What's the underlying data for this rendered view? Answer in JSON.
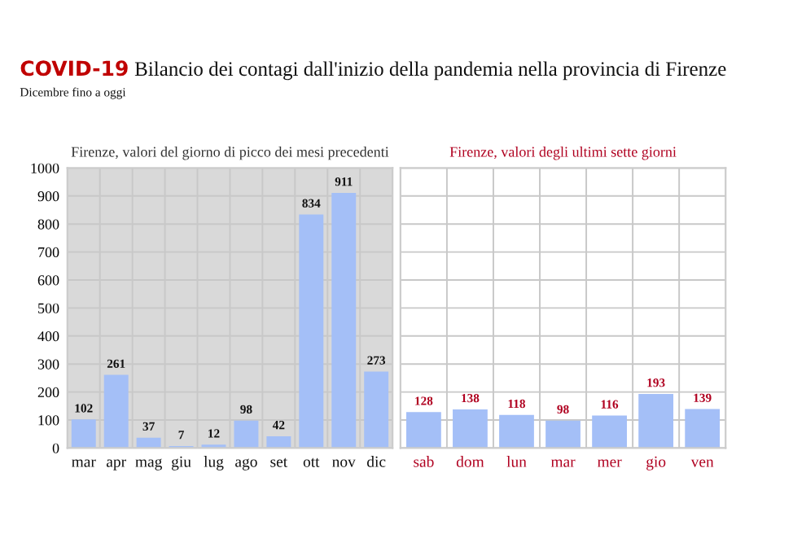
{
  "chart_data": [
    {
      "type": "bar",
      "title": "COVID-19 Bilancio dei contagi dall'inizio della pandemia nella provincia di Firenze",
      "annotations": [
        "Dicembre fino a oggi"
      ],
      "subtitle": "Firenze, valori del giorno di picco dei mesi precedenti",
      "categories": [
        "mar",
        "apr",
        "mag",
        "giu",
        "lug",
        "ago",
        "set",
        "ott",
        "nov",
        "dic"
      ],
      "values": [
        102,
        261,
        37,
        7,
        12,
        98,
        42,
        834,
        911,
        273
      ],
      "color": "#a4bff7",
      "ylim": [
        0,
        1000
      ],
      "yticks": [
        0,
        100,
        200,
        300,
        400,
        500,
        600,
        700,
        800,
        900,
        1000
      ],
      "grid": true,
      "data_labels": true
    },
    {
      "type": "bar",
      "subtitle": "Firenze, valori degli ultimi sette giorni",
      "categories": [
        "sab",
        "dom",
        "lun",
        "mar",
        "mer",
        "gio",
        "ven"
      ],
      "values": [
        128,
        138,
        118,
        98,
        116,
        193,
        139
      ],
      "color": "#a4bff7",
      "ylim": [
        0,
        1000
      ],
      "yticks": [
        0,
        100,
        200,
        300,
        400,
        500,
        600,
        700,
        800,
        900,
        1000
      ],
      "grid": true,
      "data_labels": true,
      "tick_labels": "x"
    }
  ]
}
